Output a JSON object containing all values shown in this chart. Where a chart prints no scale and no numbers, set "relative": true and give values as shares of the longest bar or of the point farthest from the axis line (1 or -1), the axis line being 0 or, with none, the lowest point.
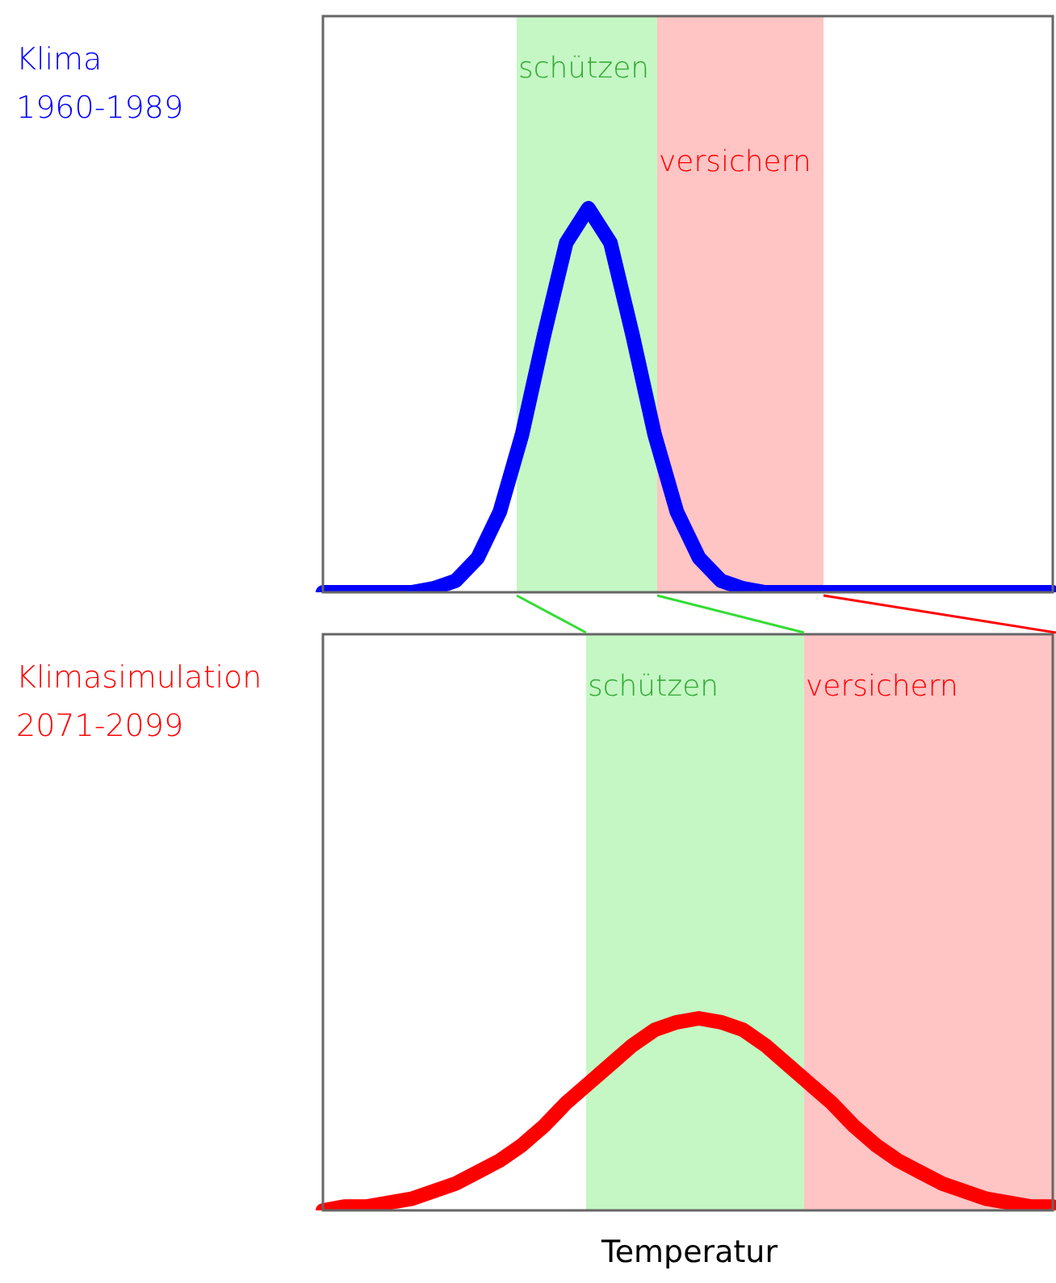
{
  "chart_data": [
    {
      "type": "line",
      "title": "Klima\n1960-1989",
      "relative": true,
      "categories": [
        null,
        null,
        null,
        null,
        null,
        null,
        null,
        null,
        null,
        null,
        null,
        null,
        null,
        null,
        null,
        null,
        null,
        null,
        null,
        null,
        null,
        null,
        null,
        null,
        null,
        null,
        null,
        null,
        null,
        null,
        null,
        null,
        null,
        null
      ],
      "series": [
        {
          "color": "#0000ff",
          "values": [
            0,
            0,
            0,
            0,
            0,
            0.01,
            0.03,
            0.09,
            0.21,
            0.41,
            0.67,
            0.91,
            1,
            0.91,
            0.67,
            0.41,
            0.21,
            0.09,
            0.03,
            0.01,
            0,
            0,
            0,
            0,
            0,
            0,
            0,
            0,
            0,
            0,
            0,
            0,
            0,
            0
          ]
        }
      ],
      "ylim": [
        0,
        1.5
      ],
      "annotations": [
        "schützen",
        "versichern"
      ],
      "grid": false,
      "legend": false,
      "marker": "none",
      "line_style": "solid"
    },
    {
      "type": "line",
      "title": "Klimasimulation\n2071-2099",
      "xlabel": "Temperatur",
      "relative": true,
      "categories": [
        null,
        null,
        null,
        null,
        null,
        null,
        null,
        null,
        null,
        null,
        null,
        null,
        null,
        null,
        null,
        null,
        null,
        null,
        null,
        null,
        null,
        null,
        null,
        null,
        null,
        null,
        null,
        null,
        null,
        null,
        null,
        null,
        null,
        null
      ],
      "series": [
        {
          "color": "#ff0000",
          "values": [
            0,
            0.02,
            0.02,
            0.04,
            0.06,
            0.1,
            0.14,
            0.2,
            0.26,
            0.34,
            0.44,
            0.56,
            0.66,
            0.76,
            0.86,
            0.94,
            0.98,
            1,
            0.98,
            0.94,
            0.86,
            0.76,
            0.66,
            0.56,
            0.44,
            0.34,
            0.26,
            0.2,
            0.14,
            0.1,
            0.06,
            0.04,
            0.02,
            0.02
          ]
        }
      ],
      "ylim": [
        0,
        3
      ],
      "annotations": [
        "schützen",
        "versichern"
      ],
      "grid": false,
      "legend": false,
      "marker": "none",
      "line_style": "solid"
    }
  ]
}
